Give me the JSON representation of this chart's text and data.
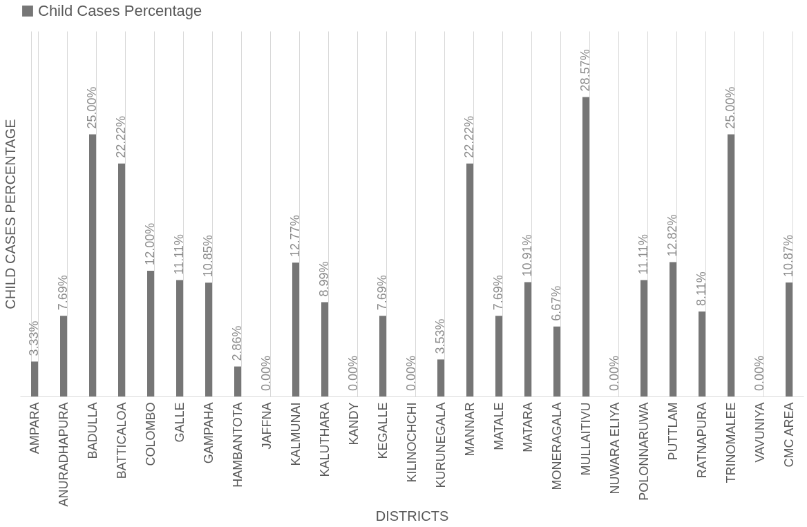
{
  "chart_data": {
    "type": "bar",
    "xlabel": "DISTRICTS",
    "ylabel": "CHILD CASES PERCENTAGE",
    "categories": [
      "AMPARA",
      "ANURADHAPURA",
      "BADULLA",
      "BATTICALOA",
      "COLOMBO",
      "GALLE",
      "GAMPAHA",
      "HAMBANTOTA",
      "JAFFNA",
      "KALMUNAI",
      "KALUTHARA",
      "KANDY",
      "KEGALLE",
      "KILINOCHCHI",
      "KURUNEGALA",
      "MANNAR",
      "MATALE",
      "MATARA",
      "MONERAGALA",
      "MULLAITIVU",
      "NUWARA ELIYA",
      "POLONNARUWA",
      "PUTTLAM",
      "RATNAPURA",
      "TRINOMALEE",
      "VAVUNIYA",
      "CMC AREA"
    ],
    "series": [
      {
        "name": "Child Cases Percentage",
        "color": "#767676",
        "values": [
          3.33,
          7.69,
          25.0,
          22.22,
          12.0,
          11.11,
          10.85,
          2.86,
          0.0,
          12.77,
          8.99,
          0.0,
          7.69,
          0.0,
          3.53,
          22.22,
          7.69,
          10.91,
          6.67,
          28.57,
          0.0,
          11.11,
          12.82,
          8.11,
          25.0,
          0.0,
          10.87
        ],
        "value_labels": [
          "3.33%",
          "7.69%",
          "25.00%",
          "22.22%",
          "12.00%",
          "11.11%",
          "10.85%",
          "2.86%",
          "0.00%",
          "12.77%",
          "8.99%",
          "0.00%",
          "7.69%",
          "0.00%",
          "3.53%",
          "22.22%",
          "7.69%",
          "10.91%",
          "6.67%",
          "28.57%",
          "0.00%",
          "11.11%",
          "12.82%",
          "8.11%",
          "25.00%",
          "0.00%",
          "10.87%"
        ]
      }
    ],
    "legend": "top",
    "grid": "x"
  }
}
